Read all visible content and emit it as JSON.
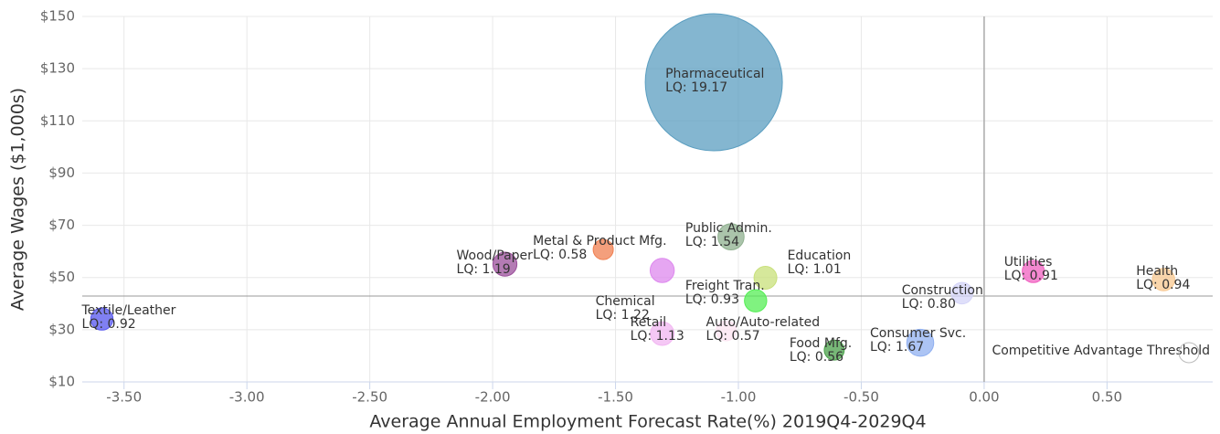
{
  "chart_data": {
    "type": "bubble",
    "xlabel": "Average Annual Employment Forecast Rate(%) 2019Q4-2029Q4",
    "ylabel": "Average Wages ($1,000s)",
    "categories": [
      "Pharmaceutical",
      "Textile/Leather",
      "Wood/Paper",
      "Metal & Product Mfg.",
      "Chemical",
      "Retail",
      "Public Admin.",
      "Education",
      "Freight Tran.",
      "Auto/Auto-related",
      "Food Mfg.",
      "Consumer Svc.",
      "Construction",
      "Utilities",
      "Health"
    ],
    "x": [
      -1.1,
      -3.59,
      -1.95,
      -1.55,
      -1.31,
      -1.31,
      -1.03,
      -0.89,
      -0.93,
      -1.05,
      -0.61,
      -0.26,
      -0.09,
      0.2,
      0.73
    ],
    "values": [
      124.8,
      34.1,
      55.1,
      60.7,
      52.7,
      28.5,
      65.6,
      49.9,
      41.1,
      29.6,
      22.2,
      25.0,
      44.0,
      52.3,
      49.2
    ],
    "sizes": [
      19.17,
      0.92,
      1.19,
      0.58,
      1.22,
      1.13,
      1.54,
      1.01,
      0.93,
      0.57,
      0.56,
      1.67,
      0.8,
      0.91,
      0.94
    ],
    "size_labels": [
      "LQ: 19.17",
      "LQ: 0.92",
      "LQ: 1.19",
      "LQ: 0.58",
      "LQ: 1.22",
      "LQ: 1.13",
      "LQ: 1.54",
      "LQ: 1.01",
      "LQ: 0.93",
      "LQ: 0.57",
      "LQ: 0.56",
      "LQ: 1.67",
      "LQ: 0.80",
      "LQ: 0.91",
      "LQ: 0.94"
    ],
    "colors": [
      "#5b9ec0",
      "#5555ee",
      "#9b4f9b",
      "#f07f50",
      "#dd88ee",
      "#f2b6f2",
      "#8fb08f",
      "#c8e07a",
      "#55ee55",
      "#fde4f2",
      "#4aa04a",
      "#90b0f0",
      "#d4d4f8",
      "#f060c0",
      "#f8c890"
    ],
    "threshold": {
      "name": "Competitive Advantage Threshold",
      "x": 0,
      "y": 42.9
    },
    "xlim": [
      -3.67,
      0.93
    ],
    "xticks": [
      {
        "value": -3.5,
        "label": "-3.50"
      },
      {
        "value": -3,
        "label": "-3.00"
      },
      {
        "value": -2.5,
        "label": "-2.50"
      },
      {
        "value": -2,
        "label": "-2.00"
      },
      {
        "value": -1.5,
        "label": "-1.50"
      },
      {
        "value": -1,
        "label": "-1.00"
      },
      {
        "value": -0.5,
        "label": "-0.50"
      },
      {
        "value": 0,
        "label": "0.00"
      },
      {
        "value": 0.5,
        "label": "0.50"
      }
    ],
    "ylim": [
      10,
      150
    ],
    "yticks": [
      {
        "value": 10,
        "label": "$10"
      },
      {
        "value": 30,
        "label": "$30"
      },
      {
        "value": 50,
        "label": "$50"
      },
      {
        "value": 70,
        "label": "$70"
      },
      {
        "value": 90,
        "label": "$90"
      },
      {
        "value": 110,
        "label": "$110"
      },
      {
        "value": 130,
        "label": "$130"
      },
      {
        "value": 150,
        "label": "$150"
      }
    ],
    "grid": true
  }
}
